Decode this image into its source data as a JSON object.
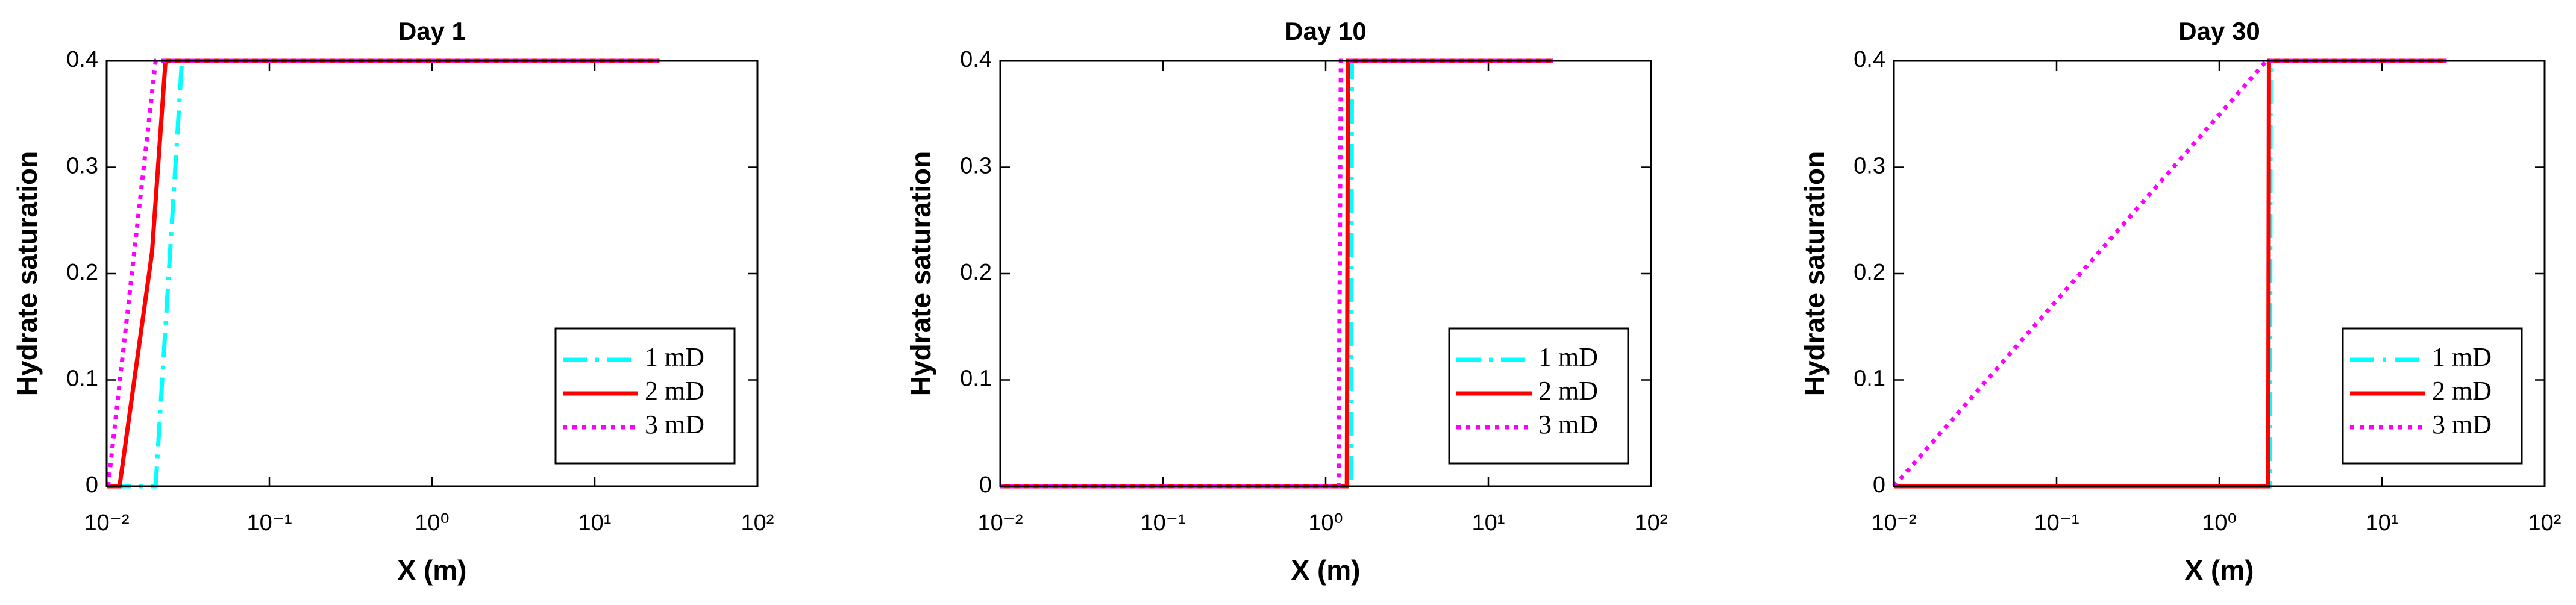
{
  "chart_data": [
    {
      "type": "line",
      "title": "Day 1",
      "xlabel": "X (m)",
      "ylabel": "Hydrate saturation",
      "xscale": "log",
      "xlim": [
        0.01,
        100
      ],
      "ylim": [
        0,
        0.4
      ],
      "xticks": [
        {
          "value": 0.01,
          "label": "10⁻²"
        },
        {
          "value": 0.1,
          "label": "10⁻¹"
        },
        {
          "value": 1,
          "label": "10⁰"
        },
        {
          "value": 10,
          "label": "10¹"
        },
        {
          "value": 100,
          "label": "10²"
        }
      ],
      "yticks": [
        0,
        0.1,
        0.2,
        0.3,
        0.4
      ],
      "legend": "lower right",
      "series": [
        {
          "name": "1 mD",
          "color": "#00ffff",
          "linestyle": "dashdot",
          "x": [
            0.01,
            0.02,
            0.029,
            25
          ],
          "values": [
            0,
            0,
            0.4,
            0.4
          ]
        },
        {
          "name": "2 mD",
          "color": "#ff0000",
          "linestyle": "solid",
          "x": [
            0.01,
            0.012,
            0.019,
            0.023,
            25
          ],
          "values": [
            0,
            0,
            0.22,
            0.4,
            0.4
          ]
        },
        {
          "name": "3 mD",
          "color": "#ff00ff",
          "linestyle": "dotted",
          "x": [
            0.0102,
            0.02,
            25
          ],
          "values": [
            0,
            0.4,
            0.4
          ]
        }
      ]
    },
    {
      "type": "line",
      "title": "Day 10",
      "xlabel": "X (m)",
      "ylabel": "Hydrate saturation",
      "xscale": "log",
      "xlim": [
        0.01,
        100
      ],
      "ylim": [
        0,
        0.4
      ],
      "xticks": [
        {
          "value": 0.01,
          "label": "10⁻²"
        },
        {
          "value": 0.1,
          "label": "10⁻¹"
        },
        {
          "value": 1,
          "label": "10⁰"
        },
        {
          "value": 10,
          "label": "10¹"
        },
        {
          "value": 100,
          "label": "10²"
        }
      ],
      "yticks": [
        0,
        0.1,
        0.2,
        0.3,
        0.4
      ],
      "legend": "lower right",
      "series": [
        {
          "name": "1 mD",
          "color": "#00ffff",
          "linestyle": "dashdot",
          "x": [
            0.01,
            1.43,
            1.45,
            25
          ],
          "values": [
            0,
            0,
            0.4,
            0.4
          ]
        },
        {
          "name": "2 mD",
          "color": "#ff0000",
          "linestyle": "solid",
          "x": [
            0.01,
            1.35,
            1.37,
            25
          ],
          "values": [
            0,
            0,
            0.4,
            0.4
          ]
        },
        {
          "name": "3 mD",
          "color": "#ff00ff",
          "linestyle": "dotted",
          "x": [
            0.01,
            1.2,
            1.24,
            25
          ],
          "values": [
            0,
            0,
            0.4,
            0.4
          ]
        }
      ]
    },
    {
      "type": "line",
      "title": "Day 30",
      "xlabel": "X (m)",
      "ylabel": "Hydrate saturation",
      "xscale": "log",
      "xlim": [
        0.01,
        100
      ],
      "ylim": [
        0,
        0.4
      ],
      "xticks": [
        {
          "value": 0.01,
          "label": "10⁻²"
        },
        {
          "value": 0.1,
          "label": "10⁻¹"
        },
        {
          "value": 1,
          "label": "10⁰"
        },
        {
          "value": 10,
          "label": "10¹"
        },
        {
          "value": 100,
          "label": "10²"
        }
      ],
      "yticks": [
        0,
        0.1,
        0.2,
        0.3,
        0.4
      ],
      "legend": "lower right",
      "series": [
        {
          "name": "1 mD",
          "color": "#00ffff",
          "linestyle": "dashdot",
          "x": [
            0.01,
            2.05,
            2.07,
            25
          ],
          "values": [
            0,
            0,
            0.4,
            0.4
          ]
        },
        {
          "name": "2 mD",
          "color": "#ff0000",
          "linestyle": "solid",
          "x": [
            0.01,
            2.0,
            2.02,
            25
          ],
          "values": [
            0,
            0,
            0.4,
            0.4
          ]
        },
        {
          "name": "3 mD",
          "color": "#ff00ff",
          "linestyle": "dotted",
          "x": [
            0.01,
            1.95,
            1.98,
            25
          ],
          "values": [
            0,
            0.4,
            0.4,
            0.4
          ]
        }
      ]
    }
  ]
}
